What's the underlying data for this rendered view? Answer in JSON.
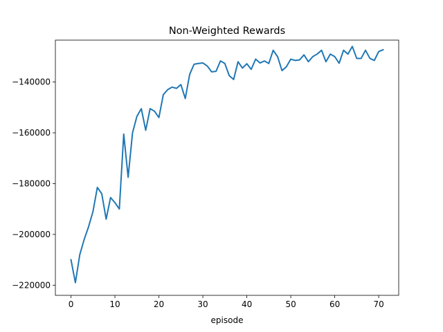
{
  "chart_data": {
    "type": "line",
    "title": "Non-Weighted Rewards",
    "xlabel": "episode",
    "ylabel": "",
    "xlim": [
      -3.55,
      74.55
    ],
    "ylim": [
      -224000,
      -123500
    ],
    "xticks": [
      0,
      10,
      20,
      30,
      40,
      50,
      60,
      70
    ],
    "xtick_labels": [
      "0",
      "10",
      "20",
      "30",
      "40",
      "50",
      "60",
      "70"
    ],
    "yticks": [
      -220000,
      -200000,
      -180000,
      -160000,
      -140000
    ],
    "ytick_labels": [
      "−220000",
      "−200000",
      "−180000",
      "−160000",
      "−140000"
    ],
    "grid": false,
    "legend": "none",
    "colors": {
      "line": "#1f77b4"
    },
    "series": [
      {
        "x": [
          0,
          1,
          2,
          3,
          4,
          5,
          6,
          7,
          8,
          9,
          10,
          11,
          12,
          13,
          14,
          15,
          16,
          17,
          18,
          19,
          20,
          21,
          22,
          23,
          24,
          25,
          26,
          27,
          28,
          29,
          30,
          31,
          32,
          33,
          34,
          35,
          36,
          37,
          38,
          39,
          40,
          41,
          42,
          43,
          44,
          45,
          46,
          47,
          48,
          49,
          50,
          51,
          52,
          53,
          54,
          55,
          56,
          57,
          58,
          59,
          60,
          61,
          62,
          63,
          64,
          65,
          66,
          67,
          68,
          69,
          70,
          71
        ],
        "values": [
          -210000,
          -219000,
          -208000,
          -202000,
          -197000,
          -191000,
          -181500,
          -184000,
          -194000,
          -185500,
          -187500,
          -190000,
          -160500,
          -177500,
          -160000,
          -153500,
          -150500,
          -159000,
          -150500,
          -151500,
          -154000,
          -145000,
          -143000,
          -142000,
          -142500,
          -141000,
          -146500,
          -137000,
          -133000,
          -132700,
          -132500,
          -133700,
          -136000,
          -135800,
          -131700,
          -132700,
          -137500,
          -139000,
          -132000,
          -134500,
          -132800,
          -135000,
          -131000,
          -132500,
          -131700,
          -132700,
          -127500,
          -130000,
          -135500,
          -134000,
          -131000,
          -131500,
          -131300,
          -129300,
          -132000,
          -130000,
          -129000,
          -127500,
          -132000,
          -129000,
          -130000,
          -132600,
          -127500,
          -129000,
          -126000,
          -130700,
          -130700,
          -127500,
          -130700,
          -131500,
          -128000,
          -127300
        ]
      }
    ]
  }
}
